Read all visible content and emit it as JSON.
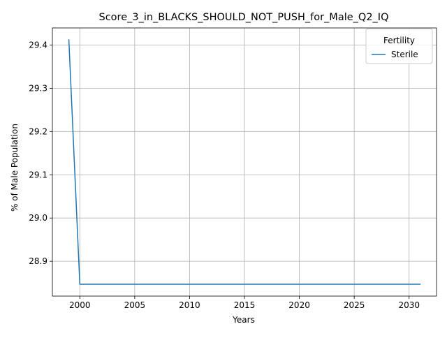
{
  "chart_data": {
    "type": "line",
    "title": "Score_3_in_BLACKS_SHOULD_NOT_PUSH_for_Male_Q2_IQ",
    "xlabel": "Years",
    "ylabel": "% of Male Population",
    "xlim": [
      1997.5,
      2032.5
    ],
    "ylim": [
      28.8195,
      29.4395
    ],
    "xticks": [
      2000,
      2005,
      2010,
      2015,
      2020,
      2025,
      2030
    ],
    "yticks": [
      28.9,
      29.0,
      29.1,
      29.2,
      29.3,
      29.4
    ],
    "ytick_labels": [
      "28.9",
      "29.0",
      "29.1",
      "29.2",
      "29.3",
      "29.4"
    ],
    "grid": true,
    "legend": {
      "title": "Fertility",
      "placement": "top-right"
    },
    "series": [
      {
        "name": "Sterile",
        "color": "#1f77b4",
        "x": [
          1999,
          2000,
          2001,
          2002,
          2003,
          2004,
          2005,
          2006,
          2007,
          2008,
          2009,
          2010,
          2011,
          2012,
          2013,
          2014,
          2015,
          2016,
          2017,
          2018,
          2019,
          2020,
          2021,
          2022,
          2023,
          2024,
          2025,
          2026,
          2027,
          2028,
          2029,
          2030,
          2031
        ],
        "y": [
          29.412,
          28.847,
          28.847,
          28.847,
          28.847,
          28.847,
          28.847,
          28.847,
          28.847,
          28.847,
          28.847,
          28.847,
          28.847,
          28.847,
          28.847,
          28.847,
          28.847,
          28.847,
          28.847,
          28.847,
          28.847,
          28.847,
          28.847,
          28.847,
          28.847,
          28.847,
          28.847,
          28.847,
          28.847,
          28.847,
          28.847,
          28.847,
          28.847
        ]
      }
    ]
  }
}
